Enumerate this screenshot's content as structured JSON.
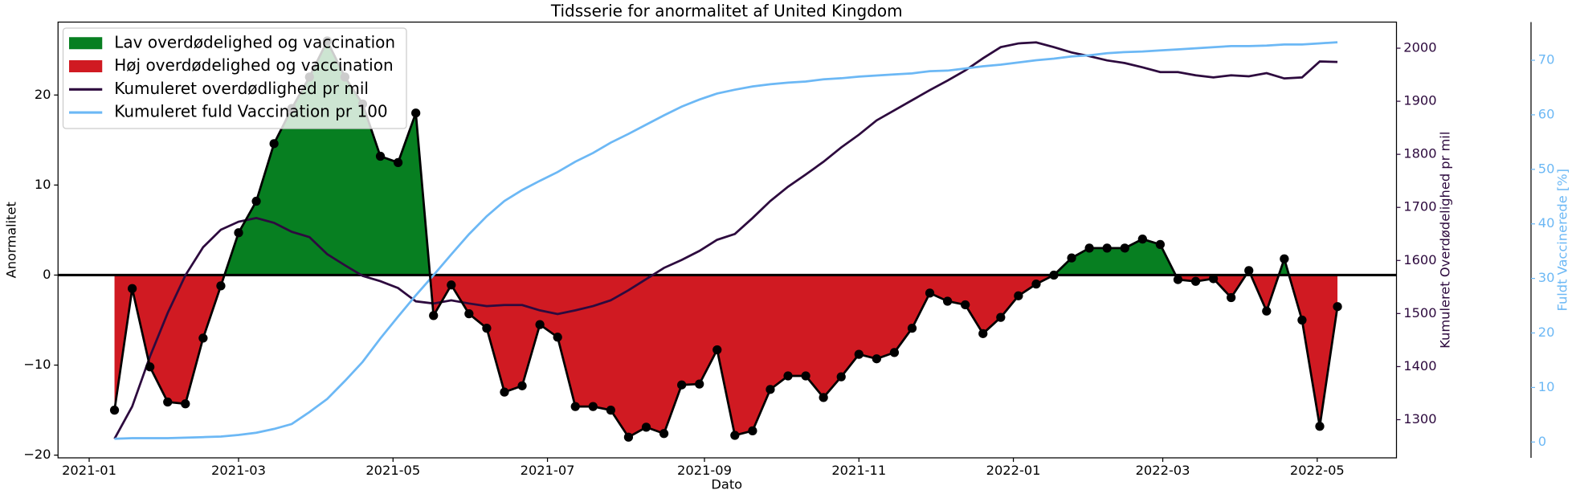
{
  "chart_data": {
    "type": "line",
    "title": "Tidsserie for anormalitet af United Kingdom",
    "xlabel": "Dato",
    "ylabel": "Anormalitet",
    "y2label": "Kumuleret Overdødelighed pr mil",
    "y3label": "Fuldt Vaccinerede [%]",
    "x": [
      18638,
      18645,
      18652,
      18659,
      18666,
      18673,
      18680,
      18687,
      18694,
      18701,
      18708,
      18715,
      18722,
      18729,
      18736,
      18743,
      18750,
      18757,
      18764,
      18771,
      18778,
      18785,
      18792,
      18799,
      18806,
      18813,
      18820,
      18827,
      18834,
      18841,
      18848,
      18855,
      18862,
      18869,
      18876,
      18883,
      18890,
      18897,
      18904,
      18911,
      18918,
      18925,
      18932,
      18939,
      18946,
      18953,
      18960,
      18967,
      18974,
      18981,
      18988,
      18995,
      19002,
      19009,
      19016,
      19023,
      19030,
      19037,
      19044,
      19051,
      19058,
      19065,
      19072,
      19079,
      19086,
      19093,
      19100,
      19107,
      19114,
      19121
    ],
    "xlim": [
      18615.7,
      19144.3
    ],
    "xticks": [
      {
        "value": 18628,
        "label": "2021-01"
      },
      {
        "value": 18687,
        "label": "2021-03"
      },
      {
        "value": 18748,
        "label": "2021-05"
      },
      {
        "value": 18809,
        "label": "2021-07"
      },
      {
        "value": 18871,
        "label": "2021-09"
      },
      {
        "value": 18932,
        "label": "2021-11"
      },
      {
        "value": 18993,
        "label": "2022-01"
      },
      {
        "value": 19052,
        "label": "2022-03"
      },
      {
        "value": 19113,
        "label": "2022-05"
      }
    ],
    "ylim": [
      -20.3,
      28.1
    ],
    "yticks": [
      {
        "value": -20,
        "label": "−20"
      },
      {
        "value": -10,
        "label": "−10"
      },
      0,
      10,
      20
    ],
    "y2lim": [
      1228.1,
      2049.2
    ],
    "y2ticks": [
      1300,
      1400,
      1500,
      1600,
      1700,
      1800,
      1900,
      2000
    ],
    "y3lim": [
      -2.9,
      77.0
    ],
    "y3ticks": [
      0,
      10,
      20,
      30,
      40,
      50,
      60,
      70
    ],
    "zero_line": true,
    "legend": "upper left",
    "anomaly": {
      "color": "#000000",
      "values": [
        -15,
        -1.5,
        -10.2,
        -14.1,
        -14.3,
        -7,
        -1.2,
        4.7,
        8.2,
        14.6,
        18.5,
        22,
        26,
        22,
        19,
        13.2,
        12.5,
        18,
        -4.5,
        -1.1,
        -4.3,
        -5.9,
        -13,
        -12.3,
        -5.5,
        -6.9,
        -14.6,
        -14.6,
        -15,
        -18,
        -16.9,
        -17.6,
        -12.2,
        -12.1,
        -8.3,
        -17.8,
        -17.3,
        -12.7,
        -11.2,
        -11.2,
        -13.6,
        -11.3,
        -8.8,
        -9.3,
        -8.6,
        -5.9,
        -2,
        -2.9,
        -3.3,
        -6.5,
        -4.7,
        -2.3,
        -1,
        0,
        1.9,
        3,
        3,
        3,
        4,
        3.4,
        -0.5,
        -0.7,
        -0.4,
        -2.5,
        0.5,
        -4,
        1.8,
        -5,
        -16.8,
        -3.5
      ]
    },
    "fills": [
      {
        "name": "Lav overdødelighed og vaccination",
        "color": "#077f21"
      },
      {
        "name": "Høj overdødelighed og vaccination",
        "color": "#d01a22"
      }
    ],
    "series": [
      {
        "name": "Kumuleret overdødlighed pr mil",
        "color": "#2d0a3e",
        "axis": "y2",
        "values": [
          1264,
          1325,
          1419,
          1501,
          1572,
          1625,
          1658,
          1673,
          1680,
          1671,
          1654,
          1644,
          1612,
          1591,
          1571,
          1561,
          1548,
          1523,
          1519,
          1525,
          1519,
          1514,
          1516,
          1516,
          1506,
          1499,
          1506,
          1514,
          1525,
          1544,
          1565,
          1586,
          1601,
          1618,
          1639,
          1650,
          1680,
          1712,
          1739,
          1762,
          1786,
          1813,
          1837,
          1864,
          1883,
          1902,
          1921,
          1939,
          1958,
          1981,
          2002,
          2009,
          2011,
          2002,
          1992,
          1985,
          1977,
          1972,
          1964,
          1955,
          1955,
          1949,
          1945,
          1949,
          1947,
          1953,
          1943,
          1945,
          1975,
          1974
        ]
      },
      {
        "name": "Kumuleret fuld Vaccination pr 100",
        "color": "#6cb8f5",
        "axis": "y3",
        "values": [
          0.6,
          0.7,
          0.7,
          0.7,
          0.8,
          0.9,
          1.0,
          1.3,
          1.7,
          2.4,
          3.3,
          5.5,
          7.9,
          11.2,
          14.7,
          19.0,
          23.0,
          26.9,
          30.6,
          34.4,
          38.1,
          41.4,
          44.2,
          46.2,
          47.9,
          49.5,
          51.4,
          53.0,
          54.9,
          56.5,
          58.2,
          59.9,
          61.5,
          62.8,
          63.9,
          64.6,
          65.2,
          65.6,
          65.9,
          66.1,
          66.5,
          66.7,
          67.0,
          67.2,
          67.4,
          67.6,
          68.0,
          68.1,
          68.5,
          68.9,
          69.2,
          69.6,
          70.0,
          70.3,
          70.7,
          70.9,
          71.3,
          71.5,
          71.6,
          71.8,
          72.0,
          72.2,
          72.4,
          72.6,
          72.6,
          72.7,
          72.9,
          72.9,
          73.1,
          73.3
        ]
      }
    ]
  }
}
